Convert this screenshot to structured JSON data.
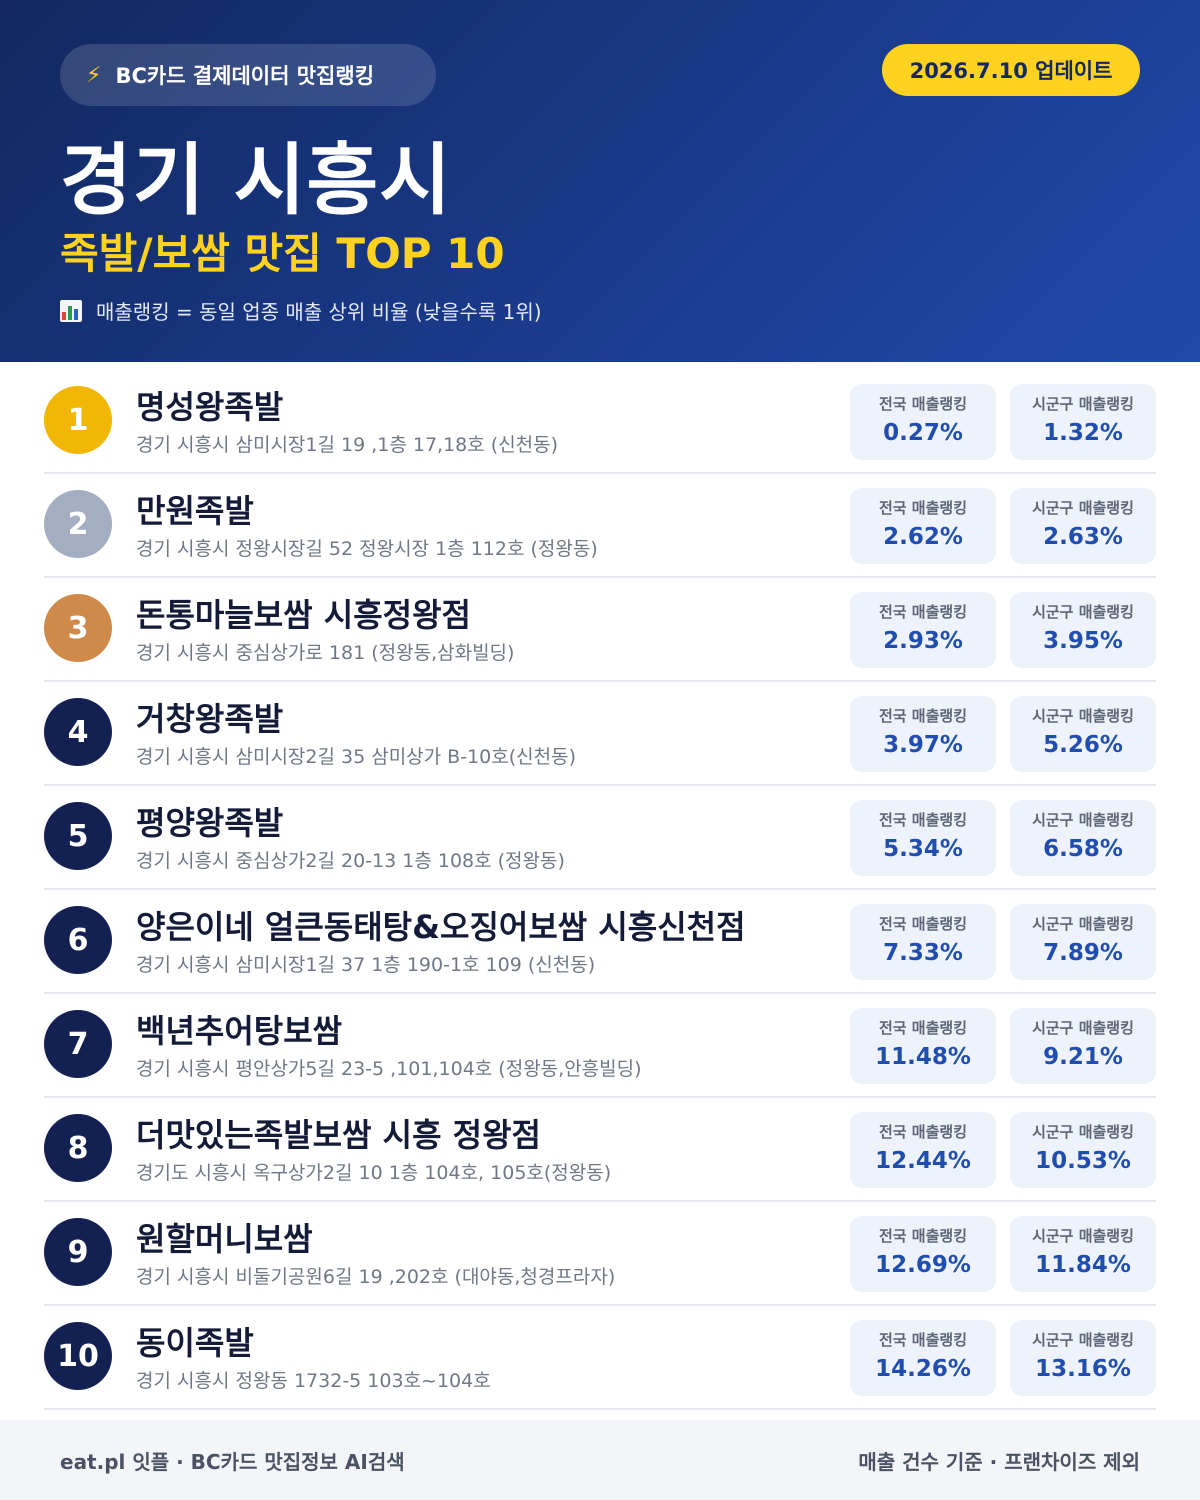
{
  "header": {
    "source_pill": "BC카드 결제데이터 맛집랭킹",
    "update_badge": "2026.7.10 업데이트",
    "city": "경기 시흥시",
    "subtitle": "족발/보쌈 맛집 TOP 10",
    "note": "매출랭킹 = 동일 업종 매출 상위 비율 (낮을수록 1위)"
  },
  "colors": {
    "header_bg": "#1a3a8c",
    "accent_yellow": "#ffd21f",
    "gold": "#f2b705",
    "silver": "#a3aec2",
    "bronze": "#cf8a4a",
    "rank_dark": "#132152",
    "value_blue": "#1f4db0"
  },
  "labels": {
    "national": "전국 매출랭킹",
    "local": "시군구 매출랭킹"
  },
  "restaurants": [
    {
      "rank": "1",
      "name": "명성왕족발",
      "address": "경기 시흥시 삼미시장1길 19 ,1층 17,18호 (신천동)",
      "national": "0.27%",
      "local": "1.32%"
    },
    {
      "rank": "2",
      "name": "만원족발",
      "address": "경기 시흥시 정왕시장길 52 정왕시장 1층 112호 (정왕동)",
      "national": "2.62%",
      "local": "2.63%"
    },
    {
      "rank": "3",
      "name": "돈통마늘보쌈 시흥정왕점",
      "address": "경기 시흥시 중심상가로 181 (정왕동,삼화빌딩)",
      "national": "2.93%",
      "local": "3.95%"
    },
    {
      "rank": "4",
      "name": "거창왕족발",
      "address": "경기 시흥시 삼미시장2길 35 삼미상가 B-10호(신천동)",
      "national": "3.97%",
      "local": "5.26%"
    },
    {
      "rank": "5",
      "name": "평양왕족발",
      "address": "경기 시흥시 중심상가2길 20-13 1층 108호 (정왕동)",
      "national": "5.34%",
      "local": "6.58%"
    },
    {
      "rank": "6",
      "name": "양은이네 얼큰동태탕&오징어보쌈 시흥신천점",
      "address": "경기 시흥시 삼미시장1길 37 1층 190-1호 109 (신천동)",
      "national": "7.33%",
      "local": "7.89%"
    },
    {
      "rank": "7",
      "name": "백년추어탕보쌈",
      "address": "경기 시흥시 평안상가5길 23-5 ,101,104호 (정왕동,안흥빌딩)",
      "national": "11.48%",
      "local": "9.21%"
    },
    {
      "rank": "8",
      "name": "더맛있는족발보쌈 시흥 정왕점",
      "address": "경기도 시흥시 옥구상가2길 10 1층 104호, 105호(정왕동)",
      "national": "12.44%",
      "local": "10.53%"
    },
    {
      "rank": "9",
      "name": "원할머니보쌈",
      "address": "경기 시흥시 비둘기공원6길 19 ,202호 (대야동,청경프라자)",
      "national": "12.69%",
      "local": "11.84%"
    },
    {
      "rank": "10",
      "name": "동이족발",
      "address": "경기 시흥시 정왕동 1732-5 103호~104호",
      "national": "14.26%",
      "local": "13.16%"
    }
  ],
  "footer": {
    "left": "eat.pl 잇플 · BC카드 맛집정보 AI검색",
    "right": "매출 건수 기준 · 프랜차이즈 제외"
  }
}
